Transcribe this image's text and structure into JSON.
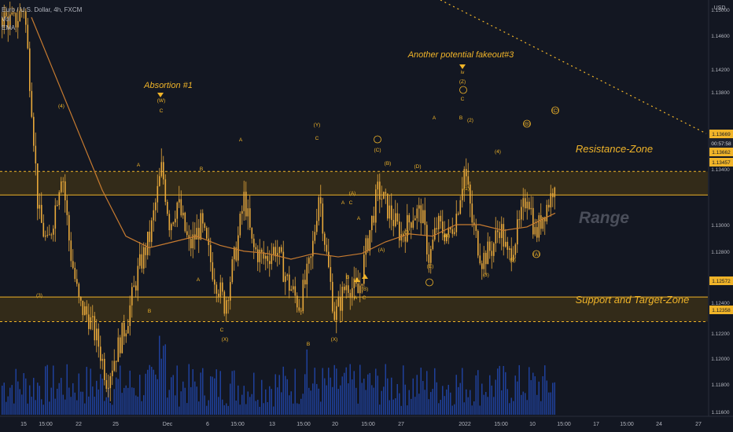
{
  "header": {
    "symbol_line": "Euro / U.S. Dollar, 4h, FXCM",
    "vol_label": "Vol",
    "ema_label": "EMA"
  },
  "currency": "USD",
  "annotations": {
    "absorption": "Absortion #1",
    "fakeout": "Another potential fakeout#3",
    "resistance": "Resistance-Zone",
    "support": "Support and Target-Zone",
    "range": "Range"
  },
  "price_tags": {
    "last_price": "1.13669",
    "countdown": "00:57:58",
    "zone_upper_top": "1.13662",
    "zone_upper_bottom": "1.13457",
    "zone_lower_top": "1.12572",
    "zone_lower_bottom": "1.12358"
  },
  "colors": {
    "background": "#131722",
    "candle": "#e8a83a",
    "ema": "#c77b30",
    "volume": "#2962ff",
    "zone_fill": "#3a2f17",
    "zone_line": "#f0b429",
    "label": "#f0b429",
    "text_muted": "#b2b5be",
    "range_text": "#4a4e5a"
  },
  "chart_data": {
    "type": "candlestick",
    "symbol": "Euro / U.S. Dollar",
    "interval": "4h",
    "source": "FXCM",
    "ylim": [
      1.1155,
      1.1515
    ],
    "price_ticks": [
      "1.15000",
      "1.14600",
      "1.14200",
      "1.13800",
      "1.13400",
      "1.13000",
      "1.12800",
      "1.12400",
      "1.12200",
      "1.12000",
      "1.11800",
      "1.11600"
    ],
    "time_ticks": [
      "15",
      "15:00",
      "22",
      "25",
      "Dec",
      "6",
      "15:00",
      "13",
      "15:00",
      "20",
      "15:00",
      "27",
      "2022",
      "15:00",
      "10",
      "15:00",
      "17",
      "15:00",
      "24",
      "27"
    ],
    "zones": [
      {
        "name": "Resistance-Zone",
        "top": 1.13662,
        "bottom": 1.13457
      },
      {
        "name": "Support and Target-Zone",
        "top": 1.12572,
        "bottom": 1.12358
      }
    ],
    "wave_labels": [
      "(4)",
      "(W)",
      "C",
      "A",
      "B",
      "(3)",
      "B",
      "A",
      "C",
      "(X)",
      "A",
      "(Y)",
      "C",
      "B",
      "A",
      "(A)",
      "(C)",
      "(B)",
      "A",
      "C",
      "B",
      "(A)",
      "(B)",
      "A",
      "C",
      "(D)",
      "(E)",
      "(C)",
      "(B)",
      "A",
      "C",
      "B",
      "(Z)",
      "iv",
      "(2)",
      "(1)",
      "(3)",
      "(4)",
      "(5)",
      "(A)",
      "(B)",
      "(C)",
      "(X)"
    ],
    "series": [
      {
        "name": "Vol",
        "type": "volume"
      },
      {
        "name": "EMA",
        "type": "line"
      }
    ]
  }
}
